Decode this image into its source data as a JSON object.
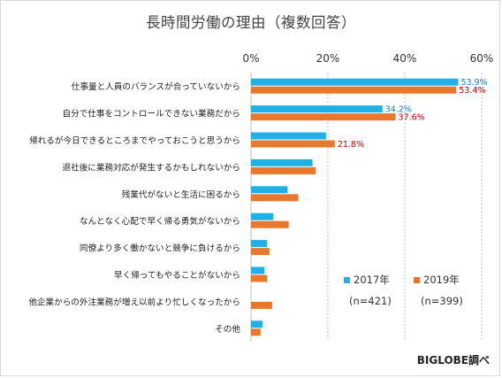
{
  "colors": {
    "s2017": "#1FB1E6",
    "s2019": "#E9782F",
    "label2017": "#1A7FC1",
    "label2019": "#C00000",
    "grid": "#BFBFBF"
  },
  "chart_data": {
    "type": "bar",
    "orientation": "horizontal",
    "title": "長時間労働の理由（複数回答）",
    "xlim": [
      0,
      60
    ],
    "x_ticks": [
      "0%",
      "20%",
      "40%",
      "60%"
    ],
    "grid": true,
    "legend_position": "bottom-right",
    "categories": [
      "仕事量と人員のバランスが合っていないから",
      "自分で仕事をコントロールできない業務だから",
      "帰れるが今日できるところまでやっておこうと思うから",
      "退社後に業務対応が発生するかもしれないから",
      "残業代がないと生活に困るから",
      "なんとなく心配で早く帰る勇気がないから",
      "同僚より多く働かないと競争に負けるから",
      "早く帰ってもやることがないから",
      "他企業からの外注業務が増え以前より忙しくなったから",
      "その他"
    ],
    "series": [
      {
        "name": "2017年",
        "note": "(n=421)",
        "values": [
          53.9,
          34.2,
          19.5,
          16.0,
          9.5,
          5.8,
          4.2,
          3.5,
          null,
          3.0
        ],
        "value_labels": [
          "53.9%",
          "34.2%",
          "",
          "",
          "",
          "",
          "",
          "",
          "",
          ""
        ]
      },
      {
        "name": "2019年",
        "note": "(n=399)",
        "values": [
          53.4,
          37.6,
          21.8,
          16.8,
          12.3,
          9.8,
          4.8,
          4.2,
          5.5,
          2.5
        ],
        "value_labels": [
          "53.4%",
          "37.6%",
          "21.8%",
          "",
          "",
          "",
          "",
          "",
          "",
          ""
        ]
      }
    ]
  },
  "source": "BIGLOBE調べ"
}
